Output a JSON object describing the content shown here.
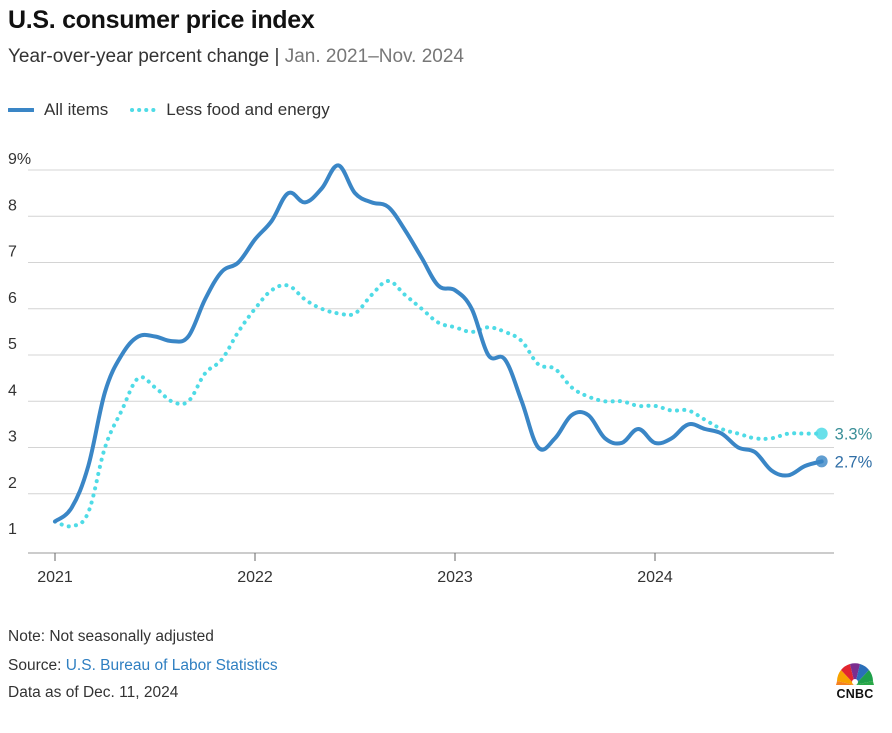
{
  "header": {
    "title": "U.S. consumer price index",
    "subtitle_main": "Year-over-year percent change",
    "subtitle_sep": " | ",
    "subtitle_range": "Jan. 2021–Nov. 2024"
  },
  "legend": {
    "all_items": "All items",
    "core": "Less food and energy"
  },
  "footer": {
    "note": "Note: Not seasonally adjusted",
    "source_prefix": "Source: ",
    "source_link": "U.S. Bureau of Labor Statistics",
    "data_as_of": "Data as of Dec. 11, 2024"
  },
  "logo": {
    "text": "CNBC",
    "icon": "peacock-logo-icon"
  },
  "colors": {
    "all_items": "#3a86c6",
    "core": "#4fdbe6",
    "grid": "#d4d4d4",
    "axis": "#999999"
  },
  "chart_data": {
    "type": "line",
    "title": "U.S. consumer price index",
    "subtitle": "Year-over-year percent change | Jan. 2021–Nov. 2024",
    "x_start": "2021-01",
    "x_end": "2024-11",
    "x_ticks": [
      "2021",
      "2022",
      "2023",
      "2024"
    ],
    "y_ticks": [
      "9%",
      "8",
      "7",
      "6",
      "5",
      "4",
      "3",
      "2",
      "1"
    ],
    "ylim": [
      1,
      9
    ],
    "grid": "horizontal",
    "legend_position": "top-left",
    "series": [
      {
        "name": "All items",
        "style": "solid",
        "end_label": "2.7%",
        "values": [
          1.4,
          1.7,
          2.6,
          4.2,
          5.0,
          5.4,
          5.4,
          5.3,
          5.4,
          6.2,
          6.8,
          7.0,
          7.5,
          7.9,
          8.5,
          8.3,
          8.6,
          9.1,
          8.5,
          8.3,
          8.2,
          7.7,
          7.1,
          6.5,
          6.4,
          6.0,
          5.0,
          4.9,
          4.0,
          3.0,
          3.2,
          3.7,
          3.7,
          3.2,
          3.1,
          3.4,
          3.1,
          3.2,
          3.5,
          3.4,
          3.3,
          3.0,
          2.9,
          2.5,
          2.4,
          2.6,
          2.7
        ]
      },
      {
        "name": "Less food and energy",
        "style": "dotted",
        "end_label": "3.3%",
        "values": [
          1.4,
          1.3,
          1.6,
          3.0,
          3.8,
          4.5,
          4.3,
          4.0,
          4.0,
          4.6,
          4.9,
          5.5,
          6.0,
          6.4,
          6.5,
          6.2,
          6.0,
          5.9,
          5.9,
          6.3,
          6.6,
          6.3,
          6.0,
          5.7,
          5.6,
          5.5,
          5.6,
          5.5,
          5.3,
          4.8,
          4.7,
          4.3,
          4.1,
          4.0,
          4.0,
          3.9,
          3.9,
          3.8,
          3.8,
          3.6,
          3.4,
          3.3,
          3.2,
          3.2,
          3.3,
          3.3,
          3.3
        ]
      }
    ]
  }
}
